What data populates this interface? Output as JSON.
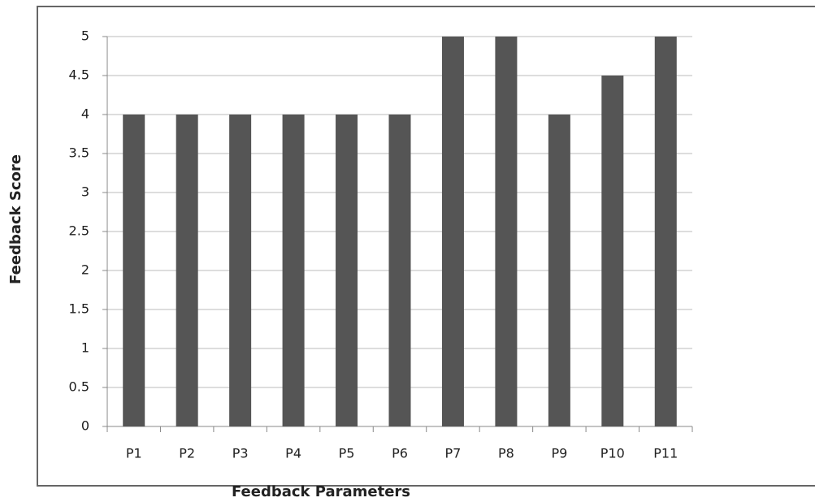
{
  "chart_data": {
    "type": "bar",
    "categories": [
      "P1",
      "P2",
      "P3",
      "P4",
      "P5",
      "P6",
      "P7",
      "P8",
      "P9",
      "P10",
      "P11"
    ],
    "values": [
      4,
      4,
      4,
      4,
      4,
      4,
      5,
      5,
      4,
      4.5,
      5
    ],
    "color": "#555555",
    "xlabel": "Feedback Parameters",
    "ylabel": "Feedback Score",
    "ylim": [
      0,
      5
    ],
    "yticks": [
      0,
      0.5,
      1,
      1.5,
      2,
      2.5,
      3,
      3.5,
      4,
      4.5,
      5
    ],
    "grid": true
  }
}
